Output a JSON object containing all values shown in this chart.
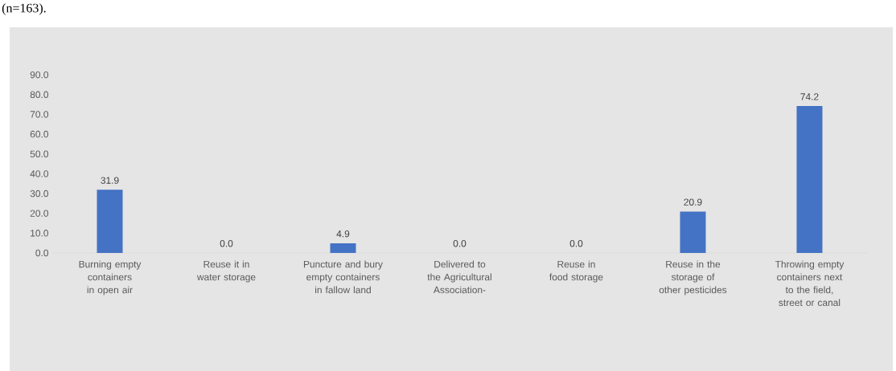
{
  "chart_data": {
    "type": "bar",
    "annotations": [
      "(n=163)."
    ],
    "categories": [
      "Burning empty containers in open air",
      "Reuse it in water storage",
      "Puncture and bury empty containers in fallow land",
      "Delivered to the Agricultural Association-",
      "Reuse in food storage",
      "Reuse in the storage of other pesticides",
      "Throwing empty containers next to the field, street or canal"
    ],
    "values": [
      31.9,
      0.0,
      4.9,
      0.0,
      0.0,
      20.9,
      74.2
    ],
    "value_labels": [
      "31.9",
      "0.0",
      "4.9",
      "0.0",
      "0.0",
      "20.9",
      "74.2"
    ],
    "color": "#4472c4",
    "ylim": [
      0,
      114
    ],
    "yticks": [
      {
        "value": 0,
        "label": "0.0"
      },
      {
        "value": 10,
        "label": "10.0"
      },
      {
        "value": 20,
        "label": "20.0"
      },
      {
        "value": 30,
        "label": "30.0"
      },
      {
        "value": 40,
        "label": "40.0"
      },
      {
        "value": 50,
        "label": "50.0"
      },
      {
        "value": 60,
        "label": "60.0"
      },
      {
        "value": 70,
        "label": "70.0"
      },
      {
        "value": 80,
        "label": "80.0"
      },
      {
        "value": 90,
        "label": "90.0"
      }
    ]
  }
}
